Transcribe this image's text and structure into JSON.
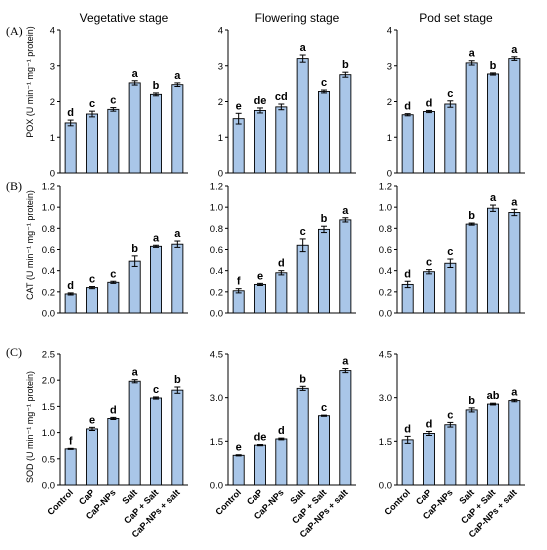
{
  "figure": {
    "stages": [
      "Vegetative stage",
      "Flowering stage",
      "Pod set stage"
    ],
    "treatments": [
      "Control",
      "CaP",
      "CaP-NPs",
      "Salt",
      "CaP + Salt",
      "CaP-NPs + salt"
    ]
  },
  "chart_data": [
    {
      "type": "bar",
      "row": 0,
      "col": 0,
      "panel_label": "(A)",
      "title": "Vegetative stage",
      "ylabel": "POX (U min⁻¹ mg⁻¹ protein)",
      "ylim": [
        0,
        4
      ],
      "yticks": [
        0,
        1,
        2,
        3,
        4
      ],
      "tick_labels": [
        "0",
        "1",
        "2",
        "3",
        "4"
      ],
      "categories": [
        "Control",
        "CaP",
        "CaP-NPs",
        "Salt",
        "CaP + Salt",
        "CaP-NPs + salt"
      ],
      "values": [
        1.4,
        1.65,
        1.78,
        2.52,
        2.2,
        2.47
      ],
      "errors": [
        0.08,
        0.08,
        0.05,
        0.06,
        0.04,
        0.05
      ],
      "letters": [
        "d",
        "c",
        "c",
        "a",
        "b",
        "a"
      ]
    },
    {
      "type": "bar",
      "row": 0,
      "col": 1,
      "title": "Flowering stage",
      "ylim": [
        0,
        4
      ],
      "yticks": [
        0,
        1,
        2,
        3,
        4
      ],
      "tick_labels": [
        "0",
        "1",
        "2",
        "3",
        "4"
      ],
      "categories": [
        "Control",
        "CaP",
        "CaP-NPs",
        "Salt",
        "CaP + Salt",
        "CaP-NPs + salt"
      ],
      "values": [
        1.52,
        1.75,
        1.85,
        3.2,
        2.28,
        2.75
      ],
      "errors": [
        0.15,
        0.07,
        0.08,
        0.1,
        0.04,
        0.07
      ],
      "letters": [
        "e",
        "de",
        "cd",
        "a",
        "c",
        "b"
      ]
    },
    {
      "type": "bar",
      "row": 0,
      "col": 2,
      "title": "Pod set stage",
      "ylim": [
        0,
        4
      ],
      "yticks": [
        0,
        1,
        2,
        3,
        4
      ],
      "tick_labels": [
        "0",
        "1",
        "2",
        "3",
        "4"
      ],
      "categories": [
        "Control",
        "CaP",
        "CaP-NPs",
        "Salt",
        "CaP + Salt",
        "CaP-NPs + salt"
      ],
      "values": [
        1.63,
        1.72,
        1.93,
        3.08,
        2.77,
        3.2
      ],
      "errors": [
        0.03,
        0.03,
        0.09,
        0.06,
        0.03,
        0.05
      ],
      "letters": [
        "d",
        "d",
        "c",
        "a",
        "b",
        "a"
      ]
    },
    {
      "type": "bar",
      "row": 1,
      "col": 0,
      "panel_label": "(B)",
      "ylabel": "CAT (U min⁻¹ mg⁻¹ protein)",
      "ylim": [
        0,
        1.2
      ],
      "yticks": [
        0,
        0.2,
        0.4,
        0.6,
        0.8,
        1.0,
        1.2
      ],
      "tick_labels": [
        "0.0",
        "0.2",
        "0.4",
        "0.6",
        "0.8",
        "1.0",
        "1.2"
      ],
      "categories": [
        "Control",
        "CaP",
        "CaP-NPs",
        "Salt",
        "CaP + Salt",
        "CaP-NPs + salt"
      ],
      "values": [
        0.18,
        0.24,
        0.29,
        0.49,
        0.63,
        0.65
      ],
      "errors": [
        0.01,
        0.01,
        0.01,
        0.05,
        0.01,
        0.03
      ],
      "letters": [
        "d",
        "c",
        "c",
        "b",
        "a",
        "a"
      ]
    },
    {
      "type": "bar",
      "row": 1,
      "col": 1,
      "ylim": [
        0,
        1.2
      ],
      "yticks": [
        0,
        0.2,
        0.4,
        0.6,
        0.8,
        1.0,
        1.2
      ],
      "tick_labels": [
        "0.0",
        "0.2",
        "0.4",
        "0.6",
        "0.8",
        "1.0",
        "1.2"
      ],
      "categories": [
        "Control",
        "CaP",
        "CaP-NPs",
        "Salt",
        "CaP + Salt",
        "CaP-NPs + salt"
      ],
      "values": [
        0.21,
        0.27,
        0.38,
        0.64,
        0.79,
        0.88
      ],
      "errors": [
        0.02,
        0.01,
        0.02,
        0.06,
        0.03,
        0.02
      ],
      "letters": [
        "f",
        "e",
        "d",
        "c",
        "b",
        "a"
      ]
    },
    {
      "type": "bar",
      "row": 1,
      "col": 2,
      "ylim": [
        0,
        1.2
      ],
      "yticks": [
        0,
        0.2,
        0.4,
        0.6,
        0.8,
        1.0,
        1.2
      ],
      "tick_labels": [
        "0.0",
        "0.2",
        "0.4",
        "0.6",
        "0.8",
        "1.0",
        "1.2"
      ],
      "categories": [
        "Control",
        "CaP",
        "CaP-NPs",
        "Salt",
        "CaP + Salt",
        "CaP-NPs + salt"
      ],
      "values": [
        0.27,
        0.39,
        0.47,
        0.84,
        0.99,
        0.95
      ],
      "errors": [
        0.03,
        0.02,
        0.04,
        0.01,
        0.03,
        0.03
      ],
      "letters": [
        "d",
        "c",
        "c",
        "b",
        "a",
        "a"
      ]
    },
    {
      "type": "bar",
      "row": 2,
      "col": 0,
      "panel_label": "(C)",
      "ylabel": "SOD (U min⁻¹ mg⁻¹ protein)",
      "ylim": [
        0,
        2.5
      ],
      "yticks": [
        0,
        0.5,
        1.0,
        1.5,
        2.0,
        2.5
      ],
      "tick_labels": [
        "0.0",
        "0.5",
        "1.0",
        "1.5",
        "2.0",
        "2.5"
      ],
      "categories": [
        "Control",
        "CaP",
        "CaP-NPs",
        "Salt",
        "CaP + Salt",
        "CaP-NPs + salt"
      ],
      "values": [
        0.69,
        1.07,
        1.27,
        1.98,
        1.66,
        1.81
      ],
      "errors": [
        0.01,
        0.03,
        0.02,
        0.03,
        0.02,
        0.06
      ],
      "letters": [
        "f",
        "e",
        "d",
        "a",
        "c",
        "b"
      ]
    },
    {
      "type": "bar",
      "row": 2,
      "col": 1,
      "ylim": [
        0,
        4.5
      ],
      "yticks": [
        0,
        1.5,
        3.0,
        4.5
      ],
      "tick_labels": [
        "0.0",
        "1.5",
        "3.0",
        "4.5"
      ],
      "categories": [
        "Control",
        "CaP",
        "CaP-NPs",
        "Salt",
        "CaP + Salt",
        "CaP-NPs + salt"
      ],
      "values": [
        1.02,
        1.37,
        1.58,
        3.32,
        2.38,
        3.93
      ],
      "errors": [
        0.02,
        0.02,
        0.03,
        0.07,
        0.02,
        0.07
      ],
      "letters": [
        "e",
        "de",
        "d",
        "b",
        "c",
        "a"
      ]
    },
    {
      "type": "bar",
      "row": 2,
      "col": 2,
      "ylim": [
        0,
        4.5
      ],
      "yticks": [
        0,
        1.5,
        3.0,
        4.5
      ],
      "tick_labels": [
        "0.0",
        "1.5",
        "3.0",
        "4.5"
      ],
      "categories": [
        "Control",
        "CaP",
        "CaP-NPs",
        "Salt",
        "CaP + Salt",
        "CaP-NPs + salt"
      ],
      "values": [
        1.55,
        1.77,
        2.07,
        2.58,
        2.78,
        2.9
      ],
      "errors": [
        0.12,
        0.07,
        0.08,
        0.07,
        0.03,
        0.04
      ],
      "letters": [
        "d",
        "d",
        "c",
        "b",
        "ab",
        "a"
      ]
    }
  ],
  "colors": {
    "bar_fill": "#a9c6e8",
    "bar_stroke": "#000000",
    "axis": "#000000"
  }
}
